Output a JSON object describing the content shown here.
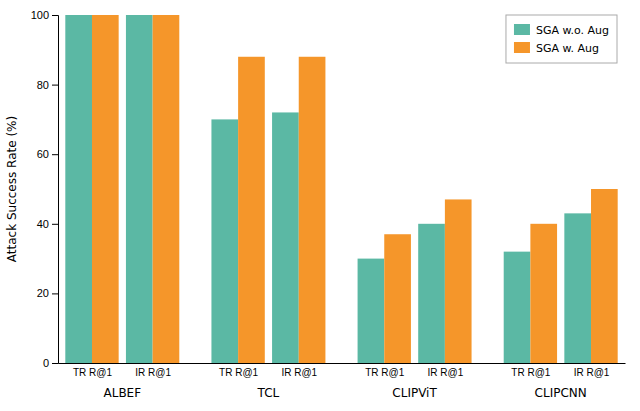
{
  "chart_data": {
    "type": "bar",
    "ylabel": "Attack Success Rate (%)",
    "categories": [
      "TR R@1",
      "IR R@1",
      "TR R@1",
      "IR R@1",
      "TR R@1",
      "IR R@1",
      "TR R@1",
      "IR R@1"
    ],
    "groups": [
      "ALBEF",
      "TCL",
      "CLIPViT",
      "CLIPCNN"
    ],
    "series": [
      {
        "name": "SGA w.o. Aug",
        "color": "#5bb8a4",
        "values": [
          100,
          100,
          70,
          72,
          30,
          40,
          32,
          43
        ]
      },
      {
        "name": "SGA w. Aug",
        "color": "#f5962a",
        "values": [
          100,
          100,
          88,
          88,
          37,
          47,
          40,
          50
        ]
      }
    ],
    "ylim": [
      0,
      100
    ],
    "yticks": [
      0,
      20,
      40,
      60,
      80,
      100
    ],
    "grid": false,
    "legend": "upper right"
  }
}
